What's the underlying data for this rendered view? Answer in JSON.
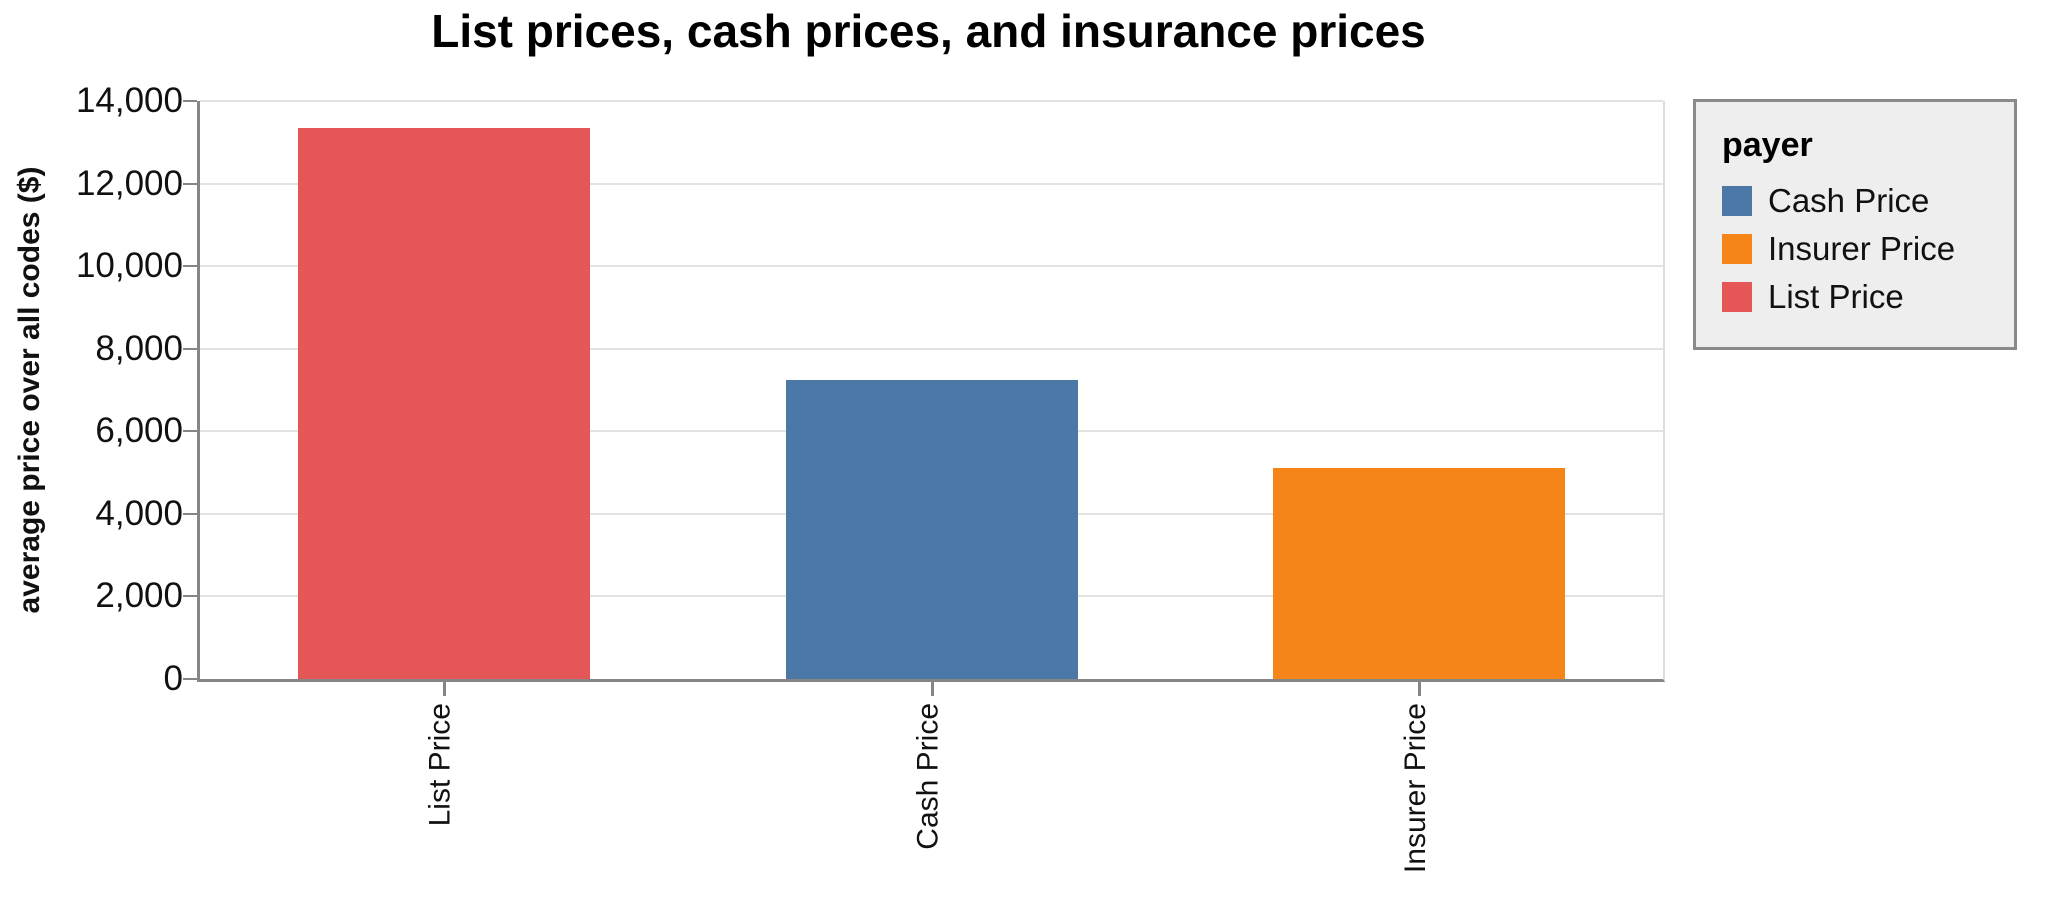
{
  "chart_data": {
    "type": "bar",
    "title": "List prices, cash prices, and insurance prices",
    "xlabel": "",
    "ylabel": "average price over all codes ($)",
    "categories": [
      "List Price",
      "Cash Price",
      "Insurer Price"
    ],
    "values": [
      13350,
      7250,
      5100
    ],
    "bar_colors": [
      "#e45756",
      "#4c78a8",
      "#f58518"
    ],
    "ylim": [
      0,
      14000
    ],
    "ytick_values": [
      0,
      2000,
      4000,
      6000,
      8000,
      10000,
      12000,
      14000
    ],
    "ytick_labels": [
      "0",
      "2,000",
      "4,000",
      "6,000",
      "8,000",
      "10,000",
      "12,000",
      "14,000"
    ],
    "grid": true,
    "legend": {
      "title": "payer",
      "position": "right",
      "entries": [
        {
          "label": "Cash Price",
          "color": "#4c78a8"
        },
        {
          "label": "Insurer Price",
          "color": "#f58518"
        },
        {
          "label": "List Price",
          "color": "#e45756"
        }
      ]
    }
  },
  "style": {
    "red": "#e45756",
    "blue": "#4c78a8",
    "orange": "#f58518",
    "grid_color": "#e2e2e2",
    "axis_color": "#868686",
    "view_border_color": "#dddddd",
    "legend_bg": "#eeeeee",
    "legend_border": "#8a8a8a",
    "text_color": "#111111"
  }
}
